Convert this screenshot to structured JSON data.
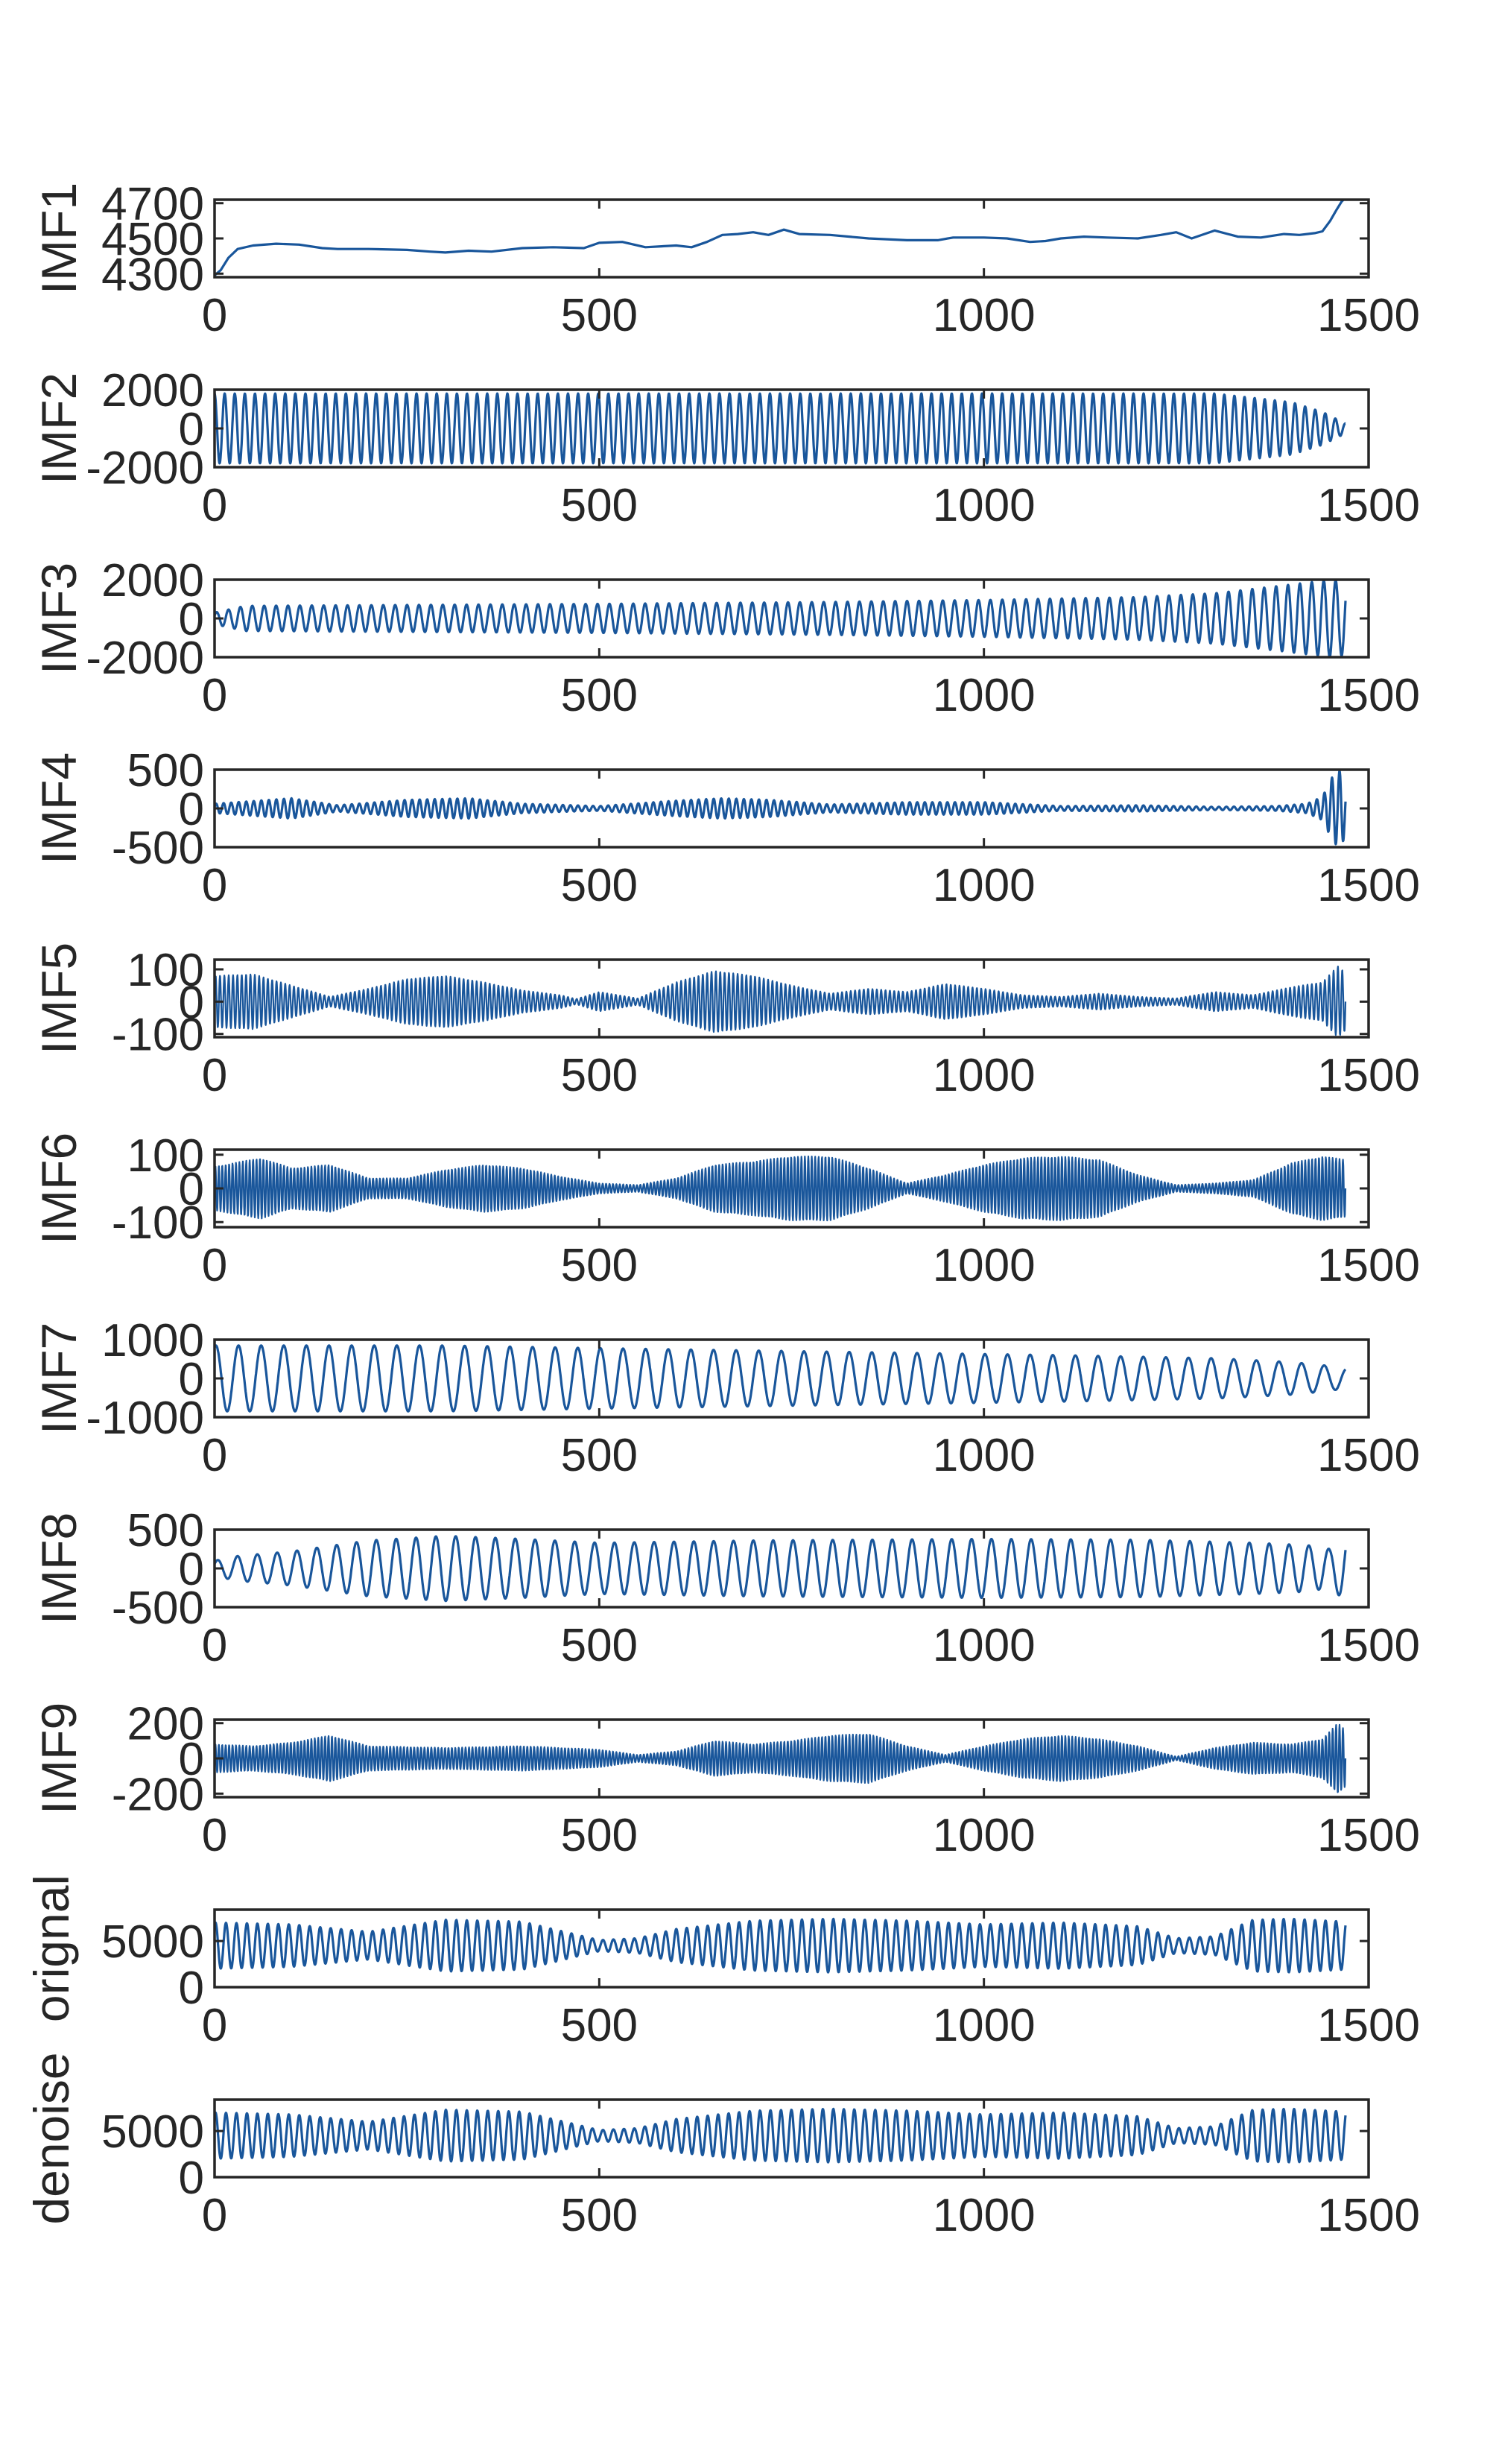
{
  "figure": {
    "line_color": "#19569B",
    "axis_color": "#262626",
    "background": "#FFFFFF"
  },
  "chart_data": [
    {
      "type": "line",
      "ylabel": "IMF1",
      "xlim": [
        0,
        1500
      ],
      "ylim": [
        4280,
        4720
      ],
      "xticks": [
        "0",
        "500",
        "1000",
        "1500"
      ],
      "yticks": [
        "4300",
        "4500",
        "4700"
      ],
      "ytick_values": [
        4300,
        4500,
        4700
      ],
      "series": [
        {
          "x": [
            0,
            8,
            18,
            30,
            50,
            80,
            110,
            140,
            160,
            200,
            250,
            280,
            300,
            330,
            360,
            400,
            440,
            480,
            500,
            530,
            560,
            600,
            620,
            640,
            660,
            680,
            700,
            720,
            740,
            760,
            800,
            850,
            900,
            940,
            960,
            980,
            1000,
            1030,
            1060,
            1080,
            1100,
            1130,
            1160,
            1200,
            1230,
            1250,
            1270,
            1300,
            1330,
            1360,
            1390,
            1410,
            1420,
            1430,
            1440,
            1450,
            1458,
            1465,
            1470
          ],
          "values": [
            4290,
            4320,
            4390,
            4440,
            4460,
            4470,
            4465,
            4445,
            4440,
            4440,
            4435,
            4425,
            4420,
            4430,
            4425,
            4445,
            4450,
            4445,
            4475,
            4480,
            4450,
            4460,
            4450,
            4480,
            4520,
            4525,
            4535,
            4520,
            4550,
            4525,
            4520,
            4500,
            4490,
            4490,
            4505,
            4505,
            4505,
            4500,
            4480,
            4485,
            4500,
            4510,
            4505,
            4500,
            4520,
            4535,
            4500,
            4545,
            4510,
            4505,
            4525,
            4520,
            4525,
            4530,
            4540,
            4600,
            4660,
            4710,
            4730
          ]
        }
      ]
    },
    {
      "type": "line",
      "ylabel": "IMF2",
      "xlim": [
        0,
        1500
      ],
      "ylim": [
        -2000,
        2000
      ],
      "xticks": [
        "0",
        "500",
        "1000",
        "1500"
      ],
      "yticks": [
        "2000",
        "0",
        "-2000"
      ],
      "ytick_values": [
        2000,
        0,
        -2000
      ],
      "series": [
        {
          "x": [
            0,
            1300,
            1400,
            1440,
            1470
          ],
          "amplitude": [
            1800,
            1800,
            1350,
            850,
            250
          ],
          "cycles": 112,
          "phase": 1.57
        }
      ]
    },
    {
      "type": "line",
      "ylabel": "IMF3",
      "xlim": [
        0,
        1500
      ],
      "ylim": [
        -2000,
        2000
      ],
      "xticks": [
        "0",
        "500",
        "1000",
        "1500"
      ],
      "yticks": [
        "2000",
        "0",
        "-2000"
      ],
      "ytick_values": [
        2000,
        0,
        -2000
      ],
      "series": [
        {
          "x": [
            0,
            40,
            500,
            800,
            1000,
            1200,
            1300,
            1400,
            1450,
            1470
          ],
          "amplitude": [
            300,
            650,
            750,
            850,
            950,
            1100,
            1300,
            1750,
            2000,
            1900
          ],
          "cycles": 95,
          "phase": 0.5
        }
      ]
    },
    {
      "type": "line",
      "ylabel": "IMF4",
      "xlim": [
        0,
        1500
      ],
      "ylim": [
        -500,
        500
      ],
      "xticks": [
        "0",
        "500",
        "1000",
        "1500"
      ],
      "yticks": [
        "500",
        "0",
        "-500"
      ],
      "ytick_values": [
        500,
        0,
        -500
      ],
      "series": [
        {
          "x": [
            0,
            100,
            160,
            250,
            330,
            400,
            500,
            600,
            660,
            720,
            800,
            900,
            1000,
            1100,
            1200,
            1300,
            1380,
            1420,
            1440,
            1455,
            1465,
            1470
          ],
          "amplitude": [
            60,
            130,
            40,
            110,
            130,
            60,
            30,
            100,
            130,
            110,
            50,
            80,
            80,
            30,
            40,
            20,
            30,
            60,
            150,
            450,
            500,
            300
          ],
          "cycles": 150,
          "phase": 0.3
        }
      ]
    },
    {
      "type": "line",
      "ylabel": "IMF5",
      "xlim": [
        0,
        1500
      ],
      "ylim": [
        -110,
        130
      ],
      "xticks": [
        "0",
        "500",
        "1000",
        "1500"
      ],
      "yticks": [
        "100",
        "0",
        "-100"
      ],
      "ytick_values": [
        100,
        0,
        -100
      ],
      "series": [
        {
          "x": [
            0,
            50,
            100,
            150,
            200,
            250,
            300,
            350,
            400,
            450,
            470,
            500,
            550,
            600,
            650,
            700,
            750,
            800,
            850,
            900,
            950,
            1000,
            1050,
            1100,
            1150,
            1200,
            1250,
            1300,
            1350,
            1400,
            1440,
            1460,
            1470
          ],
          "amplitude": [
            80,
            85,
            50,
            15,
            40,
            70,
            80,
            60,
            35,
            20,
            8,
            30,
            10,
            60,
            95,
            80,
            50,
            25,
            40,
            30,
            55,
            40,
            20,
            15,
            25,
            15,
            10,
            30,
            20,
            45,
            60,
            110,
            90
          ],
          "cycles": 260,
          "phase": 0
        }
      ]
    },
    {
      "type": "line",
      "ylabel": "IMF6",
      "xlim": [
        0,
        1500
      ],
      "ylim": [
        -115,
        115
      ],
      "xticks": [
        "0",
        "500",
        "1000",
        "1500"
      ],
      "yticks": [
        "100",
        "0",
        "-100"
      ],
      "ytick_values": [
        100,
        0,
        -100
      ],
      "series": [
        {
          "x": [
            0,
            60,
            100,
            150,
            200,
            250,
            300,
            350,
            400,
            450,
            500,
            550,
            600,
            650,
            700,
            750,
            800,
            850,
            900,
            950,
            1000,
            1050,
            1100,
            1150,
            1200,
            1250,
            1300,
            1350,
            1400,
            1440,
            1470
          ],
          "amplitude": [
            65,
            90,
            60,
            70,
            30,
            30,
            55,
            70,
            60,
            35,
            15,
            10,
            30,
            70,
            80,
            95,
            95,
            60,
            15,
            40,
            70,
            90,
            95,
            85,
            40,
            10,
            15,
            25,
            75,
            95,
            85
          ],
          "cycles": 330,
          "phase": 0
        }
      ]
    },
    {
      "type": "line",
      "ylabel": "IMF7",
      "xlim": [
        0,
        1500
      ],
      "ylim": [
        -1000,
        1000
      ],
      "xticks": [
        "0",
        "500",
        "1000",
        "1500"
      ],
      "yticks": [
        "1000",
        "0",
        "-1000"
      ],
      "ytick_values": [
        1000,
        0,
        -1000
      ],
      "series": [
        {
          "x": [
            0,
            300,
            500,
            700,
            900,
            1100,
            1300,
            1400,
            1450,
            1470
          ],
          "amplitude": [
            850,
            850,
            780,
            720,
            660,
            600,
            520,
            420,
            320,
            250
          ],
          "cycles": 50,
          "phase": 1.2
        }
      ]
    },
    {
      "type": "line",
      "ylabel": "IMF8",
      "xlim": [
        0,
        1500
      ],
      "ylim": [
        -500,
        500
      ],
      "xticks": [
        "0",
        "500",
        "1000",
        "1500"
      ],
      "yticks": [
        "500",
        "0",
        "-500"
      ],
      "ytick_values": [
        500,
        0,
        -500
      ],
      "series": [
        {
          "x": [
            0,
            30,
            100,
            200,
            300,
            400,
            500,
            700,
            1000,
            1200,
            1350,
            1420,
            1450,
            1470
          ],
          "amplitude": [
            100,
            160,
            220,
            360,
            420,
            380,
            330,
            360,
            380,
            370,
            330,
            300,
            250,
            420
          ],
          "cycles": 57,
          "phase": 0.6
        }
      ]
    },
    {
      "type": "line",
      "ylabel": "IMF9",
      "xlim": [
        0,
        1500
      ],
      "ylim": [
        -220,
        220
      ],
      "xticks": [
        "0",
        "500",
        "1000",
        "1500"
      ],
      "yticks": [
        "200",
        "0",
        "-200"
      ],
      "ytick_values": [
        200,
        0,
        -200
      ],
      "series": [
        {
          "x": [
            0,
            50,
            100,
            150,
            200,
            300,
            400,
            500,
            550,
            600,
            650,
            700,
            750,
            800,
            850,
            900,
            950,
            1000,
            1050,
            1100,
            1150,
            1200,
            1250,
            1300,
            1350,
            1400,
            1440,
            1460,
            1470
          ],
          "amplitude": [
            80,
            70,
            90,
            130,
            70,
            60,
            70,
            50,
            20,
            40,
            100,
            80,
            100,
            130,
            140,
            70,
            20,
            70,
            110,
            130,
            110,
            70,
            10,
            60,
            90,
            80,
            110,
            200,
            160
          ],
          "cycles": 330,
          "phase": 0
        }
      ]
    },
    {
      "type": "line",
      "ylabel": "orignal",
      "xlim": [
        0,
        1500
      ],
      "ylim": [
        0,
        8400
      ],
      "xticks": [
        "0",
        "500",
        "1000",
        "1500"
      ],
      "yticks": [
        "5000",
        "0"
      ],
      "ytick_values": [
        5000,
        0
      ],
      "series": [
        {
          "x": [
            0,
            100,
            200,
            300,
            400,
            500,
            550,
            600,
            700,
            800,
            900,
            1000,
            1100,
            1200,
            1250,
            1300,
            1350,
            1400,
            1470
          ],
          "baseline": 4500,
          "amplitude": [
            2500,
            2300,
            1500,
            2800,
            2600,
            600,
            800,
            1800,
            2700,
            2900,
            2700,
            2300,
            2500,
            2100,
            800,
            1000,
            2800,
            2900,
            2600
          ],
          "cycles": 108,
          "phase": 1.0
        }
      ]
    },
    {
      "type": "line",
      "ylabel": "denoise",
      "xlim": [
        0,
        1500
      ],
      "ylim": [
        0,
        8400
      ],
      "xticks": [
        "0",
        "500",
        "1000",
        "1500"
      ],
      "yticks": [
        "5000",
        "0"
      ],
      "ytick_values": [
        5000,
        0
      ],
      "series": [
        {
          "x": [
            0,
            100,
            200,
            300,
            400,
            500,
            550,
            600,
            700,
            800,
            900,
            1000,
            1100,
            1200,
            1250,
            1300,
            1350,
            1400,
            1470
          ],
          "baseline": 4500,
          "amplitude": [
            2500,
            2300,
            1500,
            2800,
            2600,
            600,
            800,
            1800,
            2700,
            2900,
            2700,
            2300,
            2500,
            2100,
            800,
            1000,
            2800,
            2900,
            2600
          ],
          "cycles": 108,
          "phase": 1.0
        }
      ]
    }
  ]
}
